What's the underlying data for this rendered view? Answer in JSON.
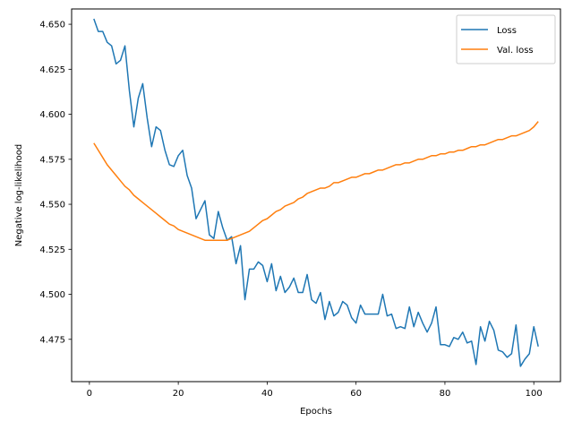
{
  "chart_data": {
    "type": "line",
    "title": "",
    "xlabel": "Epochs",
    "ylabel": "Negative log-likelihood",
    "xlim": [
      -4,
      106
    ],
    "ylim": [
      4.4515,
      4.6585
    ],
    "xticks": [
      0,
      20,
      40,
      60,
      80,
      100
    ],
    "yticks": [
      4.475,
      4.5,
      4.525,
      4.55,
      4.575,
      4.6,
      4.625,
      4.65
    ],
    "ytick_labels": [
      "4.475",
      "4.500",
      "4.525",
      "4.550",
      "4.575",
      "4.600",
      "4.625",
      "4.650"
    ],
    "grid": false,
    "legend_position": "top-right",
    "series": [
      {
        "name": "Loss",
        "color": "#1f77b4",
        "x": [
          1,
          2,
          3,
          4,
          5,
          6,
          7,
          8,
          9,
          10,
          11,
          12,
          13,
          14,
          15,
          16,
          17,
          18,
          19,
          20,
          21,
          22,
          23,
          24,
          25,
          26,
          27,
          28,
          29,
          30,
          31,
          32,
          33,
          34,
          35,
          36,
          37,
          38,
          39,
          40,
          41,
          42,
          43,
          44,
          45,
          46,
          47,
          48,
          49,
          50,
          51,
          52,
          53,
          54,
          55,
          56,
          57,
          58,
          59,
          60,
          61,
          62,
          63,
          64,
          65,
          66,
          67,
          68,
          69,
          70,
          71,
          72,
          73,
          74,
          75,
          76,
          77,
          78,
          79,
          80,
          81,
          82,
          83,
          84,
          85,
          86,
          87,
          88,
          89,
          90,
          91,
          92,
          93,
          94,
          95,
          96,
          97,
          98,
          99,
          100,
          101
        ],
        "y": [
          4.653,
          4.646,
          4.646,
          4.64,
          4.638,
          4.628,
          4.63,
          4.638,
          4.613,
          4.593,
          4.609,
          4.617,
          4.598,
          4.582,
          4.593,
          4.591,
          4.58,
          4.572,
          4.571,
          4.577,
          4.58,
          4.566,
          4.559,
          4.542,
          4.547,
          4.552,
          4.533,
          4.531,
          4.546,
          4.537,
          4.53,
          4.532,
          4.517,
          4.527,
          4.497,
          4.514,
          4.514,
          4.518,
          4.516,
          4.507,
          4.517,
          4.502,
          4.51,
          4.501,
          4.504,
          4.509,
          4.501,
          4.501,
          4.511,
          4.497,
          4.495,
          4.501,
          4.486,
          4.496,
          4.488,
          4.49,
          4.496,
          4.494,
          4.487,
          4.484,
          4.494,
          4.489,
          4.489,
          4.489,
          4.489,
          4.5,
          4.488,
          4.489,
          4.481,
          4.482,
          4.481,
          4.493,
          4.482,
          4.49,
          4.484,
          4.479,
          4.484,
          4.493,
          4.472,
          4.472,
          4.471,
          4.476,
          4.475,
          4.479,
          4.473,
          4.474,
          4.461,
          4.482,
          4.474,
          4.485,
          4.48,
          4.469,
          4.468,
          4.465,
          4.467,
          4.483,
          4.46,
          4.464,
          4.467,
          4.482,
          4.471
        ]
      },
      {
        "name": "Val. loss",
        "color": "#ff7f0e",
        "x": [
          1,
          2,
          3,
          4,
          5,
          6,
          7,
          8,
          9,
          10,
          11,
          12,
          13,
          14,
          15,
          16,
          17,
          18,
          19,
          20,
          21,
          22,
          23,
          24,
          25,
          26,
          27,
          28,
          29,
          30,
          31,
          32,
          33,
          34,
          35,
          36,
          37,
          38,
          39,
          40,
          41,
          42,
          43,
          44,
          45,
          46,
          47,
          48,
          49,
          50,
          51,
          52,
          53,
          54,
          55,
          56,
          57,
          58,
          59,
          60,
          61,
          62,
          63,
          64,
          65,
          66,
          67,
          68,
          69,
          70,
          71,
          72,
          73,
          74,
          75,
          76,
          77,
          78,
          79,
          80,
          81,
          82,
          83,
          84,
          85,
          86,
          87,
          88,
          89,
          90,
          91,
          92,
          93,
          94,
          95,
          96,
          97,
          98,
          99,
          100,
          101
        ],
        "y": [
          4.584,
          4.58,
          4.576,
          4.572,
          4.569,
          4.566,
          4.563,
          4.56,
          4.558,
          4.555,
          4.553,
          4.551,
          4.549,
          4.547,
          4.545,
          4.543,
          4.541,
          4.539,
          4.538,
          4.536,
          4.535,
          4.534,
          4.533,
          4.532,
          4.531,
          4.53,
          4.53,
          4.53,
          4.53,
          4.53,
          4.53,
          4.531,
          4.532,
          4.533,
          4.534,
          4.535,
          4.537,
          4.539,
          4.541,
          4.542,
          4.544,
          4.546,
          4.547,
          4.549,
          4.55,
          4.551,
          4.553,
          4.554,
          4.556,
          4.557,
          4.558,
          4.559,
          4.559,
          4.56,
          4.562,
          4.562,
          4.563,
          4.564,
          4.565,
          4.565,
          4.566,
          4.567,
          4.567,
          4.568,
          4.569,
          4.569,
          4.57,
          4.571,
          4.572,
          4.572,
          4.573,
          4.573,
          4.574,
          4.575,
          4.575,
          4.576,
          4.577,
          4.577,
          4.578,
          4.578,
          4.579,
          4.579,
          4.58,
          4.58,
          4.581,
          4.582,
          4.582,
          4.583,
          4.583,
          4.584,
          4.585,
          4.586,
          4.586,
          4.587,
          4.588,
          4.588,
          4.589,
          4.59,
          4.591,
          4.593,
          4.596
        ]
      }
    ]
  }
}
